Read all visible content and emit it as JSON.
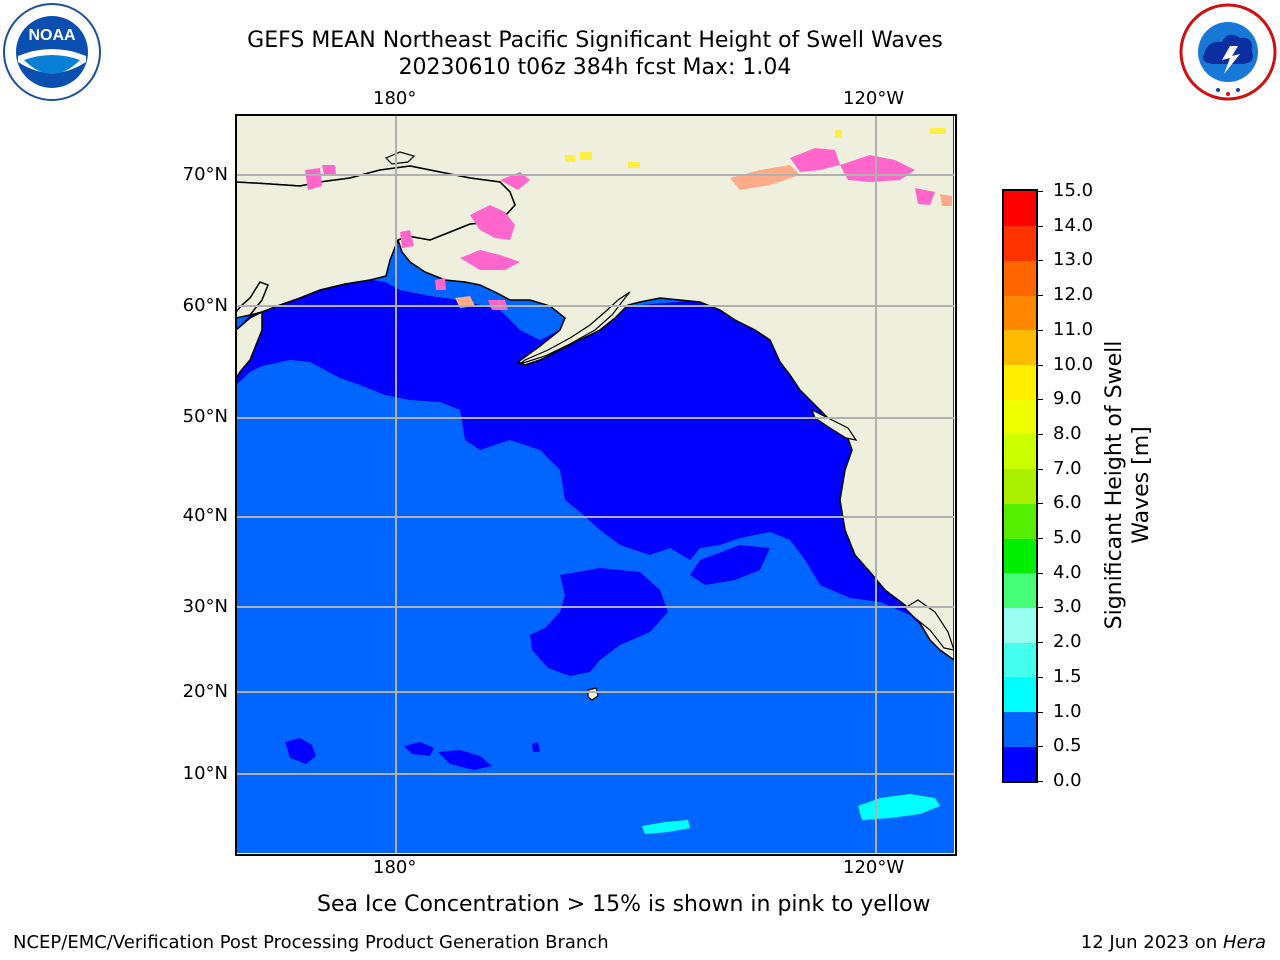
{
  "header": {
    "title_line1": "GEFS MEAN Northeast Pacific Significant Height of Swell Waves",
    "title_line2": "20230610 t06z 384h fcst   Max: 1.04"
  },
  "logos": {
    "left": {
      "text": "NOAA",
      "ring_text": "NATIONAL OCEANIC AND ATMOSPHERIC ADMINISTRATION · U.S. DEPARTMENT OF COMMERCE"
    },
    "right": {
      "ring_text": "NATIONAL WEATHER SERVICE"
    }
  },
  "map": {
    "lon_labels_top": [
      "180°",
      "120°W"
    ],
    "lon_labels_bottom": [
      "180°",
      "120°W"
    ],
    "lat_labels": [
      "70°N",
      "60°N",
      "50°N",
      "40°N",
      "30°N",
      "20°N",
      "10°N"
    ],
    "colors": {
      "land": "#efefde",
      "ocean_0_0.5": "#0000ff",
      "ocean_0.5_1.0": "#0066ff",
      "ocean_1.0_1.5": "#00ffff",
      "sea_ice": "#ff66cc",
      "grid": "#b0b0b0"
    }
  },
  "colorbar": {
    "ticks": [
      "0.0",
      "0.5",
      "1.0",
      "1.5",
      "2.0",
      "3.0",
      "4.0",
      "5.0",
      "6.0",
      "7.0",
      "8.0",
      "9.0",
      "10.0",
      "11.0",
      "12.0",
      "13.0",
      "14.0",
      "15.0"
    ],
    "colors": [
      "#0000ff",
      "#0066ff",
      "#00ffff",
      "#44ffee",
      "#99fff0",
      "#44ff77",
      "#00ee00",
      "#55ee00",
      "#aaee00",
      "#ccff00",
      "#eeff00",
      "#ffee00",
      "#ffbb00",
      "#ff8800",
      "#ff6600",
      "#ff3300",
      "#ff0000"
    ],
    "title": "Significant Height of Swell Waves [m]"
  },
  "notes": {
    "sea_ice": "Sea Ice Concentration > 15% is shown in pink to yellow"
  },
  "footer": {
    "left": "NCEP/EMC/Verification Post Processing Product Generation Branch",
    "right_prefix": "12 Jun 2023 on ",
    "right_machine": "Hera"
  }
}
